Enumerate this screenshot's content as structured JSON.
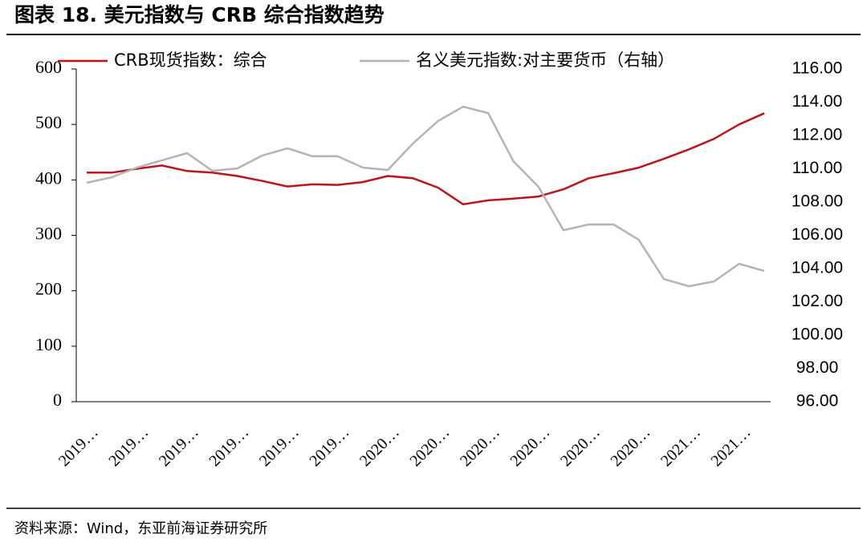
{
  "chart_data": {
    "type": "line",
    "title": "图表 18. 美元指数与 CRB 综合指数趋势",
    "source": "资料来源：Wind，东亚前海证券研究所",
    "categories": [
      "2019…",
      null,
      "2019…",
      null,
      "2019…",
      null,
      "2019…",
      null,
      "2019…",
      null,
      "2019…",
      null,
      "2020…",
      null,
      "2020…",
      null,
      "2020…",
      null,
      "2020…",
      null,
      "2020…",
      null,
      "2020…",
      null,
      "2021…",
      null,
      "2021…",
      null
    ],
    "series": [
      {
        "name": "CRB现货指数：综合",
        "color": "#c0121c",
        "values": [
          413,
          413,
          420,
          426,
          416,
          413,
          407,
          398,
          388,
          392,
          391,
          396,
          407,
          403,
          386,
          356,
          363,
          366,
          370,
          383,
          403,
          412,
          422,
          438,
          455,
          474,
          500,
          520
        ]
      },
      {
        "name": "名义美元指数:对主要货币（右轴）",
        "color": "#b4b4b4",
        "axis": "y2",
        "values": [
          109.16,
          109.49,
          110.07,
          110.51,
          110.94,
          109.88,
          110.02,
          110.8,
          111.23,
          110.75,
          110.75,
          110.07,
          109.93,
          111.52,
          112.87,
          113.73,
          113.35,
          110.46,
          108.92,
          106.31,
          106.65,
          106.65,
          105.73,
          103.37,
          102.94,
          103.23,
          104.29,
          103.86
        ]
      }
    ],
    "ylim": [
      0,
      600
    ],
    "yticks": [
      0,
      100,
      200,
      300,
      400,
      500,
      600
    ],
    "y2lim": [
      96,
      116
    ],
    "y2ticks": [
      {
        "value": 96,
        "label": "96.00"
      },
      {
        "value": 98,
        "label": "98.00"
      },
      {
        "value": 100,
        "label": "100.00"
      },
      {
        "value": 102,
        "label": "102.00"
      },
      {
        "value": 104,
        "label": "104.00"
      },
      {
        "value": 106,
        "label": "106.00"
      },
      {
        "value": 108,
        "label": "108.00"
      },
      {
        "value": 110,
        "label": "110.00"
      },
      {
        "value": 112,
        "label": "112.00"
      },
      {
        "value": 114,
        "label": "114.00"
      },
      {
        "value": 116,
        "label": "116.00"
      }
    ],
    "legend": "top"
  }
}
